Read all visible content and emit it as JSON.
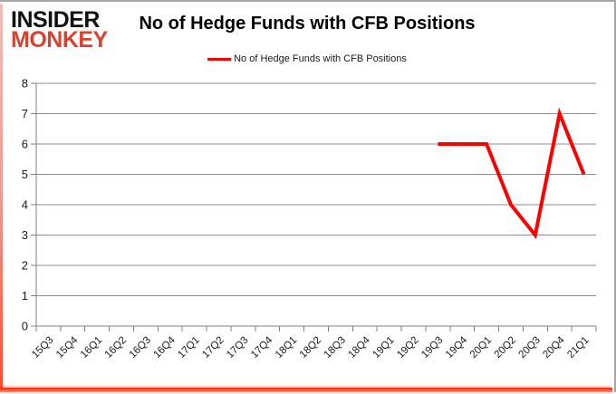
{
  "logo": {
    "line1": "INSIDER",
    "line2": "MONKEY",
    "line1_color": "#111111",
    "line2_color": "#d8432f"
  },
  "header": {
    "title": "No of Hedge Funds with CFB Positions"
  },
  "legend": {
    "label": "No of Hedge Funds with CFB Positions",
    "swatch_color": "#ff0000"
  },
  "chart_data": {
    "type": "line",
    "title": "No of Hedge Funds with CFB Positions",
    "categories": [
      "15Q3",
      "15Q4",
      "16Q1",
      "16Q2",
      "16Q3",
      "16Q4",
      "17Q1",
      "17Q2",
      "17Q3",
      "17Q4",
      "18Q1",
      "18Q2",
      "18Q3",
      "18Q4",
      "19Q1",
      "19Q2",
      "19Q3",
      "19Q4",
      "20Q1",
      "20Q2",
      "20Q3",
      "20Q4",
      "21Q1"
    ],
    "series": [
      {
        "name": "No of Hedge Funds with CFB Positions",
        "color": "#ff0000",
        "values": [
          null,
          null,
          null,
          null,
          null,
          null,
          null,
          null,
          null,
          null,
          null,
          null,
          null,
          null,
          null,
          null,
          6,
          6,
          6,
          4,
          3,
          7,
          5
        ]
      }
    ],
    "ylim": [
      0,
      8
    ],
    "ytick_interval": 1,
    "grid": true,
    "legend_position": "top-center",
    "gridline_color": "#8e8e8e",
    "axis_color": "#808080",
    "tick_label_color": "#1a1a1a"
  }
}
